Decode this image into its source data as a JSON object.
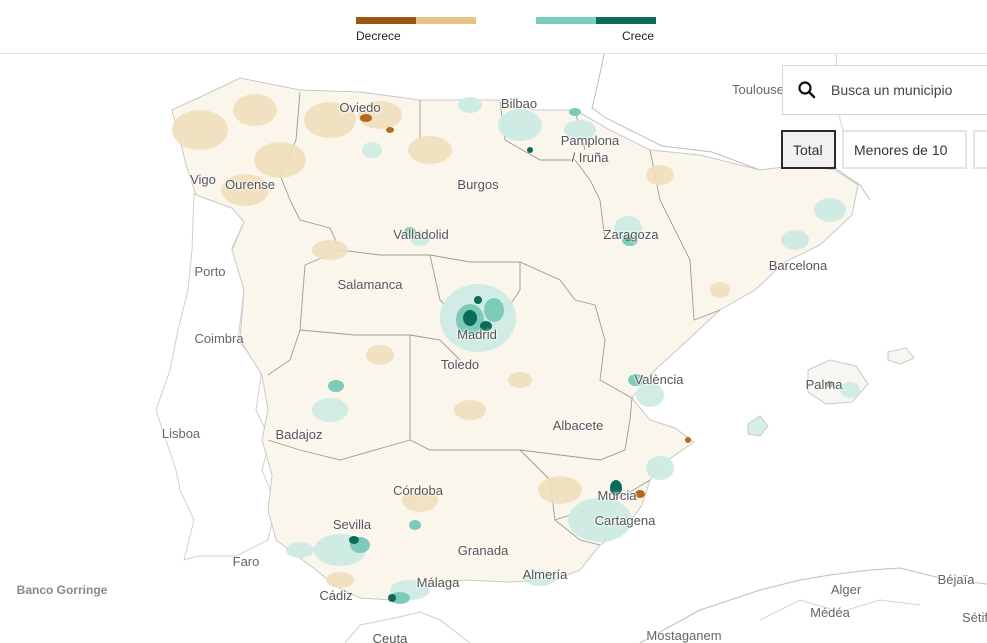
{
  "legend": {
    "decrease_label": "Decrece",
    "increase_label": "Crece",
    "decrease_colors": [
      "#9a5510",
      "#e5c485"
    ],
    "increase_colors": [
      "#79cdbd",
      "#0d6b5b"
    ]
  },
  "search": {
    "placeholder": "Busca un municipio",
    "icon": "search-icon"
  },
  "filters": [
    {
      "label": "Total",
      "active": true
    },
    {
      "label": "Menores de 10",
      "active": false
    },
    {
      "label": "",
      "active": false
    }
  ],
  "places": {
    "oviedo": "Oviedo",
    "bilbao": "Bilbao",
    "pamplona_1": "Pamplona",
    "pamplona_2": "/ Iruña",
    "vigo": "Vigo",
    "ourense": "Ourense",
    "burgos": "Burgos",
    "zaragoza": "Zaragoza",
    "valladolid": "Valladolid",
    "barcelona": "Barcelona",
    "salamanca": "Salamanca",
    "madrid": "Madrid",
    "toledo": "Toledo",
    "valencia": "València",
    "palma": "Palma",
    "albacete": "Albacete",
    "badajoz": "Badajoz",
    "cordoba": "Córdoba",
    "murcia": "Murcia",
    "cartagena": "Cartagena",
    "sevilla": "Sevilla",
    "granada": "Granada",
    "almeria": "Almería",
    "malaga": "Málaga",
    "cadiz": "Cádiz",
    "ceuta": "Ceuta"
  },
  "foreign_places": {
    "toulouse": "Toulouse",
    "porto": "Porto",
    "coimbra": "Coimbra",
    "lisboa": "Lisboa",
    "faro": "Faro",
    "banco_gorringe": "Banco Gorringe",
    "alger": "Alger",
    "bejaia": "Béjaïa",
    "medea": "Médéa",
    "setif": "Sétif",
    "mostaganem": "Mostaganem"
  },
  "colors": {
    "land": "#fbf6ec",
    "outside_land": "#ffffff",
    "border": "#9a9a9a",
    "light_decrease": "#f1dfbd",
    "mid_decrease": "#e7c98f",
    "strong_decrease": "#b36a1d",
    "light_increase": "#cdebe4",
    "mid_increase": "#7ccbb9",
    "strong_increase": "#0d6b5b"
  }
}
